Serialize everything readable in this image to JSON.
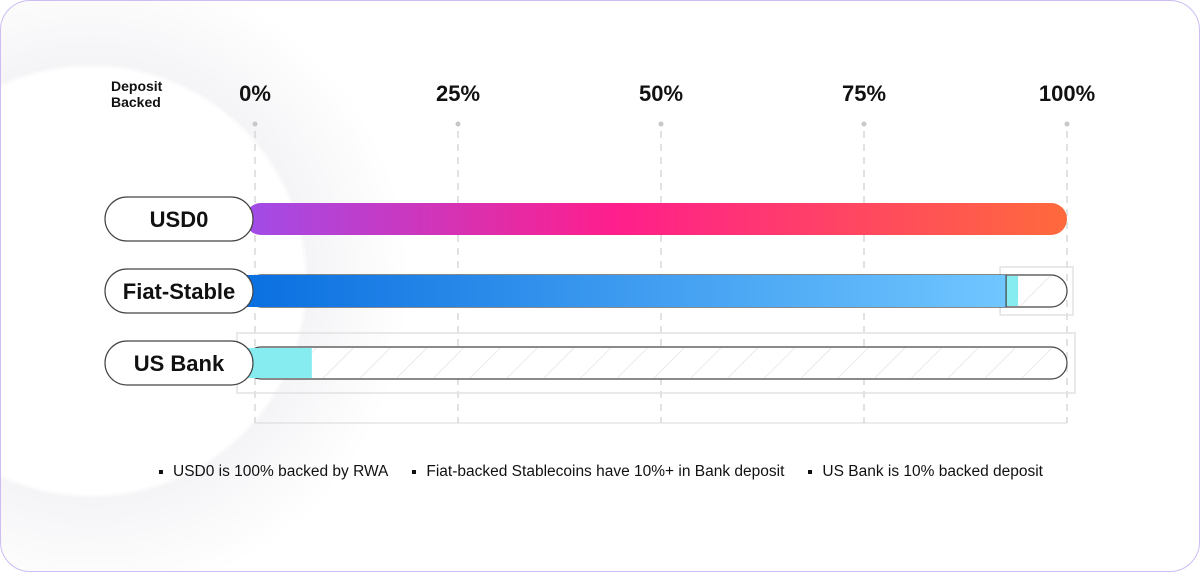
{
  "chart_data": {
    "type": "bar",
    "orientation": "horizontal",
    "axis_label": "Deposit Backed",
    "ticks": [
      "0%",
      "25%",
      "50%",
      "75%",
      "100%"
    ],
    "xlim": [
      0,
      100
    ],
    "categories": [
      "USD0",
      "Fiat-Stable",
      "US Bank"
    ],
    "values": [
      100,
      10,
      10
    ],
    "series": [
      {
        "category": "USD0",
        "fill_value": 100,
        "highlight_value": 0,
        "style": "purple-pink-orange gradient"
      },
      {
        "category": "Fiat-Stable",
        "fill_value": 92.5,
        "highlight_value": 10,
        "style": "blue gradient with cyan deposit segment"
      },
      {
        "category": "US Bank",
        "fill_value": 0,
        "highlight_value": 10,
        "style": "hatched with cyan deposit segment"
      }
    ],
    "legend": [
      "USD0 is 100% backed by RWA",
      "Fiat-backed Stablecoins have 10%+ in Bank deposit",
      "US Bank is 10% backed deposit"
    ],
    "legend_position": "bottom",
    "grid": true
  },
  "colors": {
    "gradient_purple": "#a04ce8",
    "gradient_pink": "#ff1e8c",
    "gradient_orange": "#ff6a3c",
    "blue_dark": "#0a6fe0",
    "blue_light": "#6fc4ff",
    "cyan": "#86ecf0",
    "outline": "#444444"
  }
}
